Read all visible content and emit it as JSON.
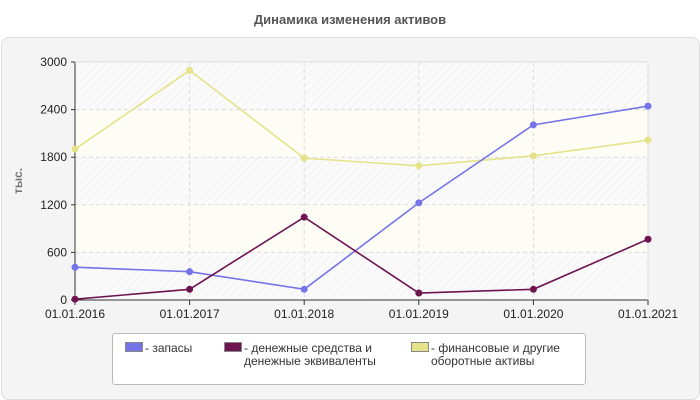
{
  "chart_data": {
    "type": "line",
    "title": "Динамика изменения активов",
    "xlabel": "",
    "ylabel": "тыс.",
    "ylim": [
      0,
      3000
    ],
    "yticks": [
      "0",
      "600",
      "1200",
      "1800",
      "2400",
      "3000"
    ],
    "categories": [
      "01.01.2016",
      "01.01.2017",
      "01.01.2018",
      "01.01.2019",
      "01.01.2020",
      "01.01.2021"
    ],
    "grid": true,
    "legend_position": "bottom",
    "series": [
      {
        "name": "- запасы",
        "color": "#7474e8",
        "values": [
          413,
          357,
          135,
          1224,
          2208,
          2444
        ]
      },
      {
        "name": "- денежные средства и денежные эквиваленты",
        "color": "#6e1450",
        "values": [
          10,
          135,
          1044,
          88,
          135,
          766
        ]
      },
      {
        "name": "- финансовые и другие оборотные активы",
        "color": "#e6e28a",
        "values": [
          1902,
          2894,
          1788,
          1691,
          1817,
          2015
        ]
      }
    ]
  }
}
